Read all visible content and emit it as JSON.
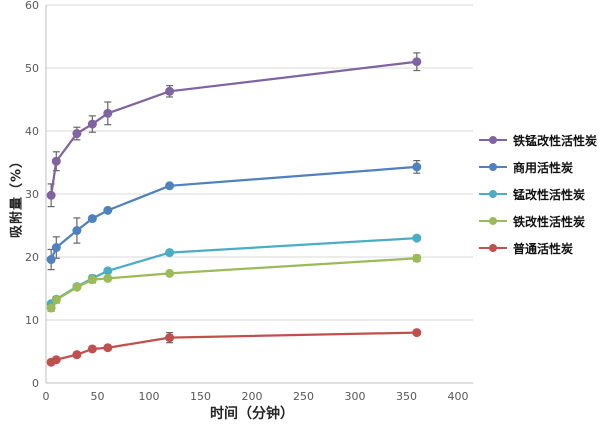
{
  "chart_data": {
    "type": "line",
    "title": "",
    "xlabel": "时间（分钟）",
    "ylabel": "吸附量（%）",
    "x": [
      5,
      10,
      30,
      45,
      60,
      120,
      360
    ],
    "xlim": [
      0,
      400
    ],
    "ylim": [
      0,
      60
    ],
    "x_ticks": [
      0,
      50,
      100,
      150,
      200,
      250,
      300,
      350,
      400
    ],
    "y_ticks": [
      0,
      10,
      20,
      30,
      40,
      50,
      60
    ],
    "grid": "horizontal",
    "legend_position": "right",
    "marker": "circle",
    "error_bars": true,
    "series": [
      {
        "name": "铁锰改性活性炭",
        "color": "#8064A2",
        "values": [
          29.8,
          35.2,
          39.6,
          41.1,
          42.8,
          46.3,
          51.0
        ],
        "errors": [
          1.8,
          1.5,
          1.0,
          1.3,
          1.8,
          0.9,
          1.4
        ]
      },
      {
        "name": "商用活性炭",
        "color": "#4F81BD",
        "values": [
          19.6,
          21.5,
          24.2,
          26.1,
          27.4,
          31.3,
          34.3
        ],
        "errors": [
          1.6,
          1.7,
          2.0,
          0,
          0,
          0,
          1.0
        ]
      },
      {
        "name": "锰改性活性炭",
        "color": "#4BACC6",
        "values": [
          12.6,
          13.3,
          15.3,
          16.6,
          17.8,
          20.7,
          23.0
        ],
        "errors": [
          0,
          0,
          0,
          0.5,
          0,
          0,
          0
        ]
      },
      {
        "name": "铁改性活性炭",
        "color": "#9BBB59",
        "values": [
          11.9,
          13.2,
          15.2,
          16.4,
          16.6,
          17.4,
          19.8
        ],
        "errors": [
          0.5,
          0.5,
          0,
          0.5,
          0,
          0,
          0.5
        ]
      },
      {
        "name": "普通活性炭",
        "color": "#C0504D",
        "values": [
          3.3,
          3.7,
          4.5,
          5.4,
          5.6,
          7.2,
          8.0
        ],
        "errors": [
          0.4,
          0,
          0.4,
          0,
          0,
          0.8,
          0
        ]
      }
    ],
    "style": {
      "grid_color": "#D9D9D9",
      "axis_color": "#BFBFBF",
      "tick_color": "#595959",
      "error_bar_color": "#666666"
    }
  }
}
